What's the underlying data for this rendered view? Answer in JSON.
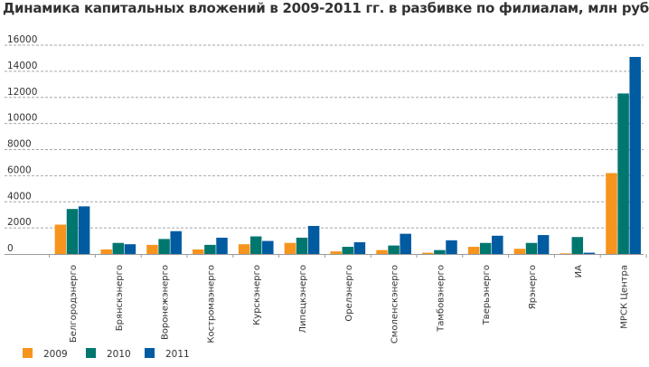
{
  "chart_data": {
    "type": "bar",
    "title": "Динамика капитальных вложений в 2009-2011 гг. в разбивке по филиалам, млн руб.",
    "categories": [
      "Белгородэнерго",
      "Брянскэнерго",
      "Воронежэнерго",
      "Костромаэнерго",
      "Курскэнерго",
      "Липецкэнерго",
      "Орелэнерго",
      "Смоленскэнерго",
      "Тамбовэнерго",
      "Тверьэнерго",
      "Ярэнерго",
      "ИА",
      "МРСК Центра"
    ],
    "series": [
      {
        "name": "2009",
        "color": "#f7941d",
        "values": [
          2250,
          350,
          700,
          350,
          750,
          850,
          200,
          300,
          100,
          550,
          400,
          50,
          6200
        ]
      },
      {
        "name": "2010",
        "color": "#00776e",
        "values": [
          3450,
          850,
          1150,
          700,
          1350,
          1250,
          550,
          650,
          300,
          850,
          850,
          1300,
          12300
        ]
      },
      {
        "name": "2011",
        "color": "#005ba1",
        "values": [
          3650,
          750,
          1750,
          1250,
          1000,
          2150,
          900,
          1550,
          1050,
          1400,
          1450,
          100,
          15100
        ]
      }
    ],
    "yticks": [
      "0",
      "2000",
      "4000",
      "6000",
      "8000",
      "10000",
      "12000",
      "14000",
      "16000"
    ],
    "ylim": [
      0,
      16000
    ],
    "grid": true,
    "legend_position": "bottom-left"
  }
}
